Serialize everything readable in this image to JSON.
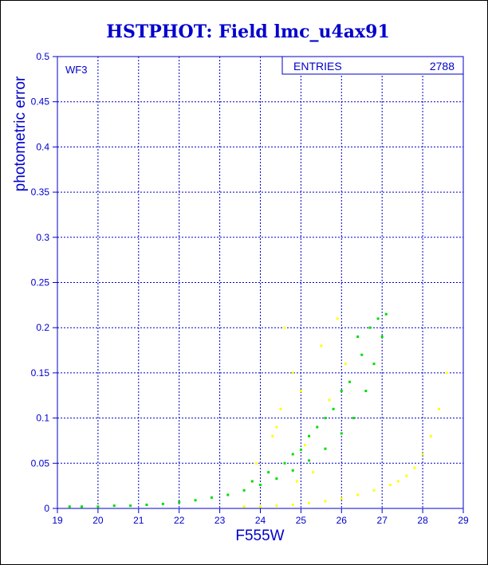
{
  "chart_data": {
    "type": "scatter",
    "title": "HSTPHOT: Field lmc_u4ax91",
    "xlabel": "F555W",
    "ylabel": "photometric error",
    "xlim": [
      19,
      29
    ],
    "ylim": [
      0,
      0.5
    ],
    "x_ticks": [
      "19",
      "20",
      "21",
      "22",
      "23",
      "24",
      "25",
      "26",
      "27",
      "28",
      "29"
    ],
    "y_ticks": [
      "0",
      "0.05",
      "0.1",
      "0.15",
      "0.2",
      "0.25",
      "0.3",
      "0.35",
      "0.4",
      "0.45",
      "0.5"
    ],
    "grid": true,
    "panel_label": "WF3",
    "stats_box": {
      "label": "ENTRIES",
      "value": "2788"
    },
    "series": [
      {
        "color": "#00dd00",
        "points": [
          [
            19.3,
            0.002
          ],
          [
            19.6,
            0.002
          ],
          [
            20.0,
            0.002
          ],
          [
            20.4,
            0.003
          ],
          [
            20.8,
            0.003
          ],
          [
            21.2,
            0.004
          ],
          [
            21.6,
            0.005
          ],
          [
            22.0,
            0.007
          ],
          [
            22.4,
            0.009
          ],
          [
            22.8,
            0.012
          ],
          [
            23.2,
            0.015
          ],
          [
            23.6,
            0.02
          ],
          [
            24.0,
            0.026
          ],
          [
            24.4,
            0.033
          ],
          [
            24.8,
            0.042
          ],
          [
            25.2,
            0.053
          ],
          [
            25.6,
            0.066
          ],
          [
            26.0,
            0.083
          ],
          [
            26.3,
            0.1
          ],
          [
            26.6,
            0.13
          ],
          [
            26.8,
            0.16
          ],
          [
            27.0,
            0.19
          ],
          [
            27.1,
            0.215
          ],
          [
            23.8,
            0.03
          ],
          [
            24.2,
            0.04
          ],
          [
            24.6,
            0.05
          ],
          [
            25.0,
            0.065
          ],
          [
            25.4,
            0.09
          ],
          [
            25.8,
            0.11
          ],
          [
            26.2,
            0.14
          ],
          [
            26.5,
            0.17
          ],
          [
            26.7,
            0.2
          ],
          [
            26.4,
            0.19
          ],
          [
            25.2,
            0.08
          ],
          [
            25.6,
            0.1
          ],
          [
            26.0,
            0.13
          ],
          [
            24.8,
            0.06
          ],
          [
            26.9,
            0.21
          ]
        ]
      },
      {
        "color": "#ffff00",
        "points": [
          [
            23.6,
            0.002
          ],
          [
            24.0,
            0.002
          ],
          [
            24.4,
            0.003
          ],
          [
            24.8,
            0.004
          ],
          [
            25.2,
            0.006
          ],
          [
            25.6,
            0.008
          ],
          [
            26.0,
            0.011
          ],
          [
            26.4,
            0.015
          ],
          [
            26.8,
            0.02
          ],
          [
            27.2,
            0.026
          ],
          [
            27.4,
            0.03
          ],
          [
            27.6,
            0.036
          ],
          [
            27.8,
            0.045
          ],
          [
            28.0,
            0.06
          ],
          [
            28.2,
            0.08
          ],
          [
            28.4,
            0.11
          ],
          [
            28.6,
            0.15
          ],
          [
            24.5,
            0.11
          ],
          [
            24.8,
            0.15
          ],
          [
            25.1,
            0.07
          ],
          [
            24.3,
            0.08
          ],
          [
            25.5,
            0.18
          ],
          [
            24.9,
            0.03
          ],
          [
            25.3,
            0.04
          ],
          [
            26.1,
            0.16
          ],
          [
            25.7,
            0.12
          ],
          [
            24.6,
            0.2
          ],
          [
            25.9,
            0.21
          ],
          [
            23.9,
            0.05
          ],
          [
            24.4,
            0.09
          ],
          [
            25.0,
            0.13
          ]
        ]
      }
    ]
  }
}
